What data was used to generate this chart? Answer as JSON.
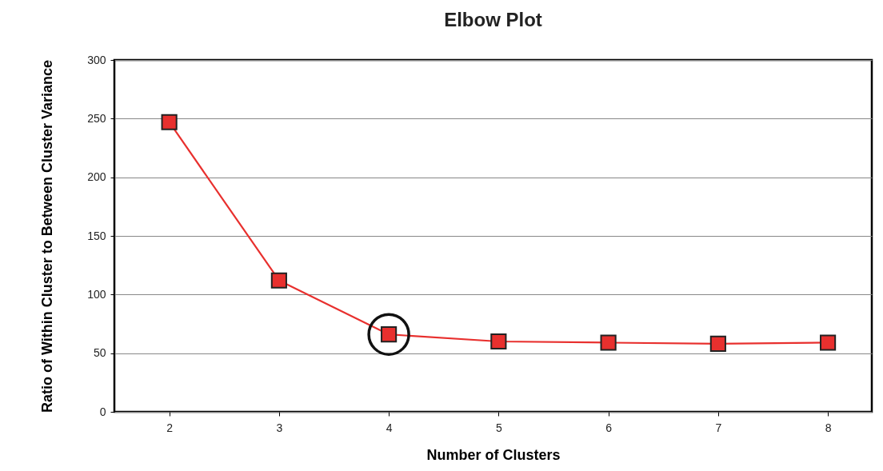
{
  "chart_data": {
    "type": "line",
    "title": "Elbow Plot",
    "xlabel": "Number of Clusters",
    "ylabel": "Ratio of Within Cluster to Between Cluster Variance",
    "x": [
      2,
      3,
      4,
      5,
      6,
      7,
      8
    ],
    "series": [
      {
        "color": "#e8302e",
        "values": [
          247,
          112,
          66,
          60,
          59,
          58,
          59
        ]
      }
    ],
    "xlim": [
      1.5,
      8.4
    ],
    "xticks": [
      2,
      3,
      4,
      5,
      6,
      7,
      8
    ],
    "ylim": [
      0,
      300
    ],
    "yticks": [
      0,
      50,
      100,
      150,
      200,
      250,
      300
    ],
    "grid": "y",
    "marker": "square",
    "line_style": "solid"
  }
}
